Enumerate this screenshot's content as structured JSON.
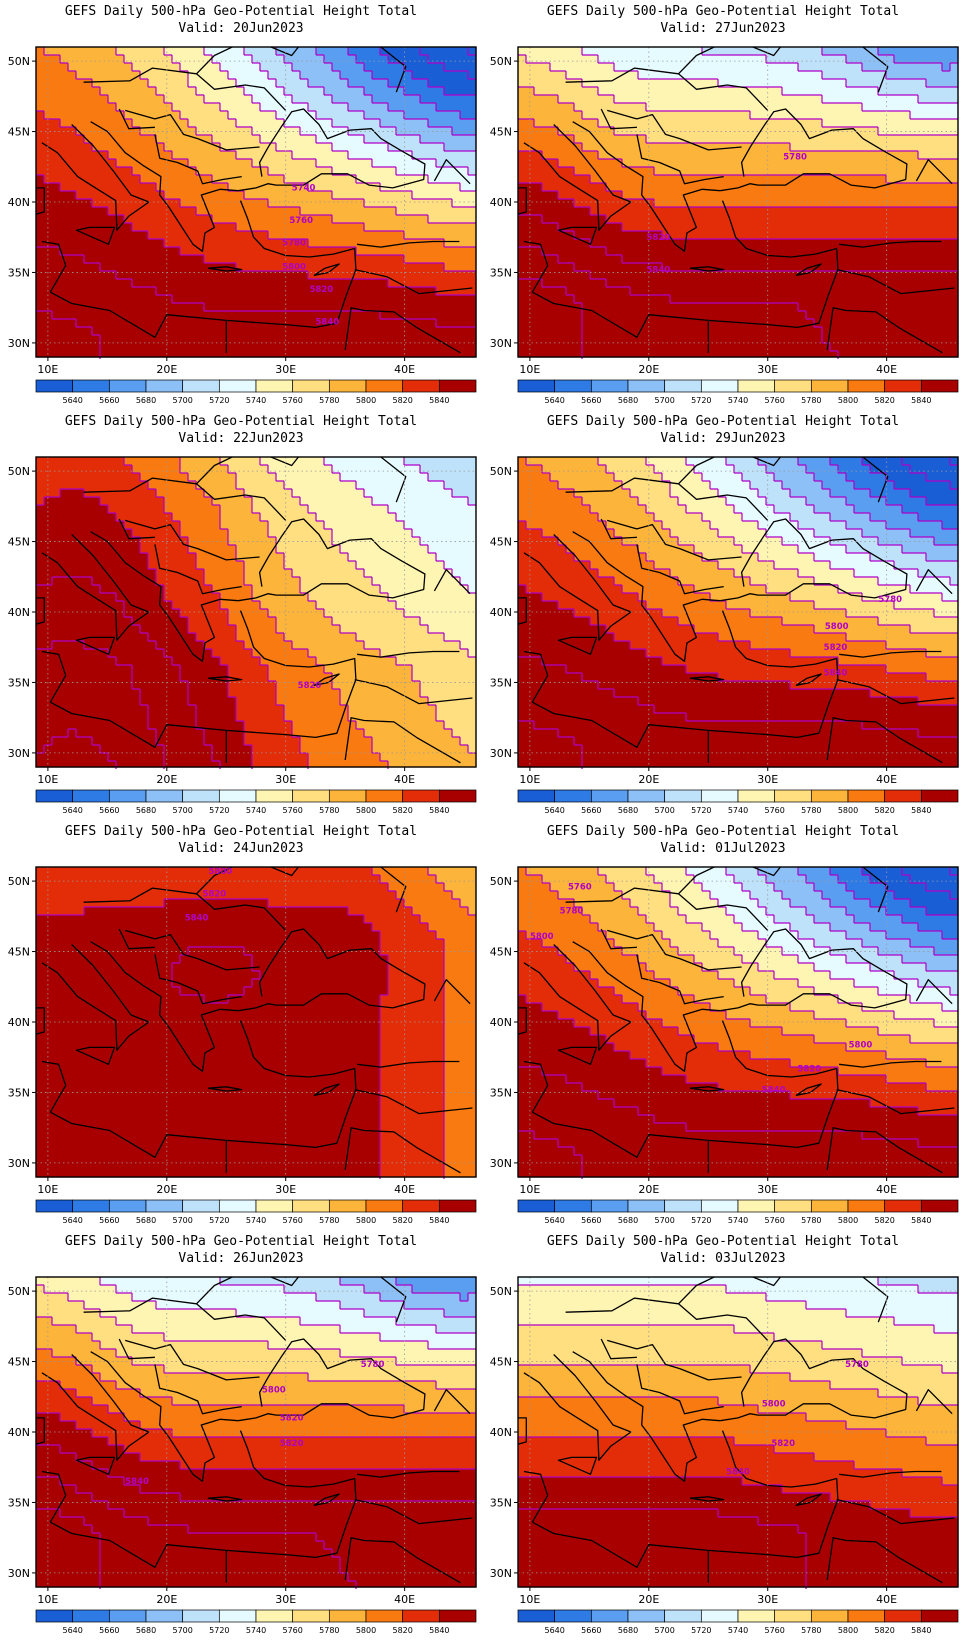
{
  "common_title": "GEFS Daily 500-hPa Geo-Potential Height Total",
  "valid_prefix": "Valid:",
  "lat_labels": [
    "50N",
    "45N",
    "40N",
    "35N",
    "30N"
  ],
  "lon_labels": [
    "10E",
    "20E",
    "30E",
    "40E"
  ],
  "lat_values": [
    50,
    45,
    40,
    35,
    30
  ],
  "lon_values": [
    10,
    20,
    30,
    40
  ],
  "map_extent": {
    "lon": [
      9,
      46
    ],
    "lat": [
      29,
      51
    ]
  },
  "colorbar": {
    "labels": [
      "5640",
      "5660",
      "5680",
      "5700",
      "5720",
      "5740",
      "5760",
      "5780",
      "5800",
      "5820",
      "5840"
    ],
    "colors": [
      "#1a5ed6",
      "#2f7be6",
      "#5a9ef2",
      "#8cc0f7",
      "#bfe2fb",
      "#e6fbff",
      "#fff5b3",
      "#ffdf80",
      "#fdb43a",
      "#f97a10",
      "#e32d08",
      "#a80000"
    ],
    "contour_color": "#b000c8"
  },
  "panels": [
    {
      "valid": "20Jun2023",
      "field_type": "trough-ne",
      "contour_labels": [
        {
          "text": "5740",
          "lon": 31.5,
          "lat": 40.8
        },
        {
          "text": "5760",
          "lon": 31.3,
          "lat": 38.5
        },
        {
          "text": "5780",
          "lon": 30.7,
          "lat": 36.9
        },
        {
          "text": "5800",
          "lon": 30.7,
          "lat": 35.2
        },
        {
          "text": "5820",
          "lon": 33.0,
          "lat": 33.6
        },
        {
          "text": "5840",
          "lon": 33.5,
          "lat": 31.3
        }
      ]
    },
    {
      "valid": "27Jun2023",
      "field_type": "zonal-trough",
      "contour_labels": [
        {
          "text": "5780",
          "lon": 32.3,
          "lat": 43.0
        },
        {
          "text": "5820",
          "lon": 20.8,
          "lat": 37.3
        },
        {
          "text": "5840",
          "lon": 20.8,
          "lat": 35.0
        }
      ]
    },
    {
      "valid": "22Jun2023",
      "field_type": "ridge-west",
      "contour_labels": [
        {
          "text": "5820",
          "lon": 32.0,
          "lat": 34.6
        }
      ]
    },
    {
      "valid": "29Jun2023",
      "field_type": "trough-ne",
      "contour_labels": [
        {
          "text": "5780",
          "lon": 40.3,
          "lat": 40.7
        },
        {
          "text": "5800",
          "lon": 35.8,
          "lat": 38.8
        },
        {
          "text": "5820",
          "lon": 35.7,
          "lat": 37.3
        },
        {
          "text": "5840",
          "lon": 35.7,
          "lat": 35.5
        }
      ]
    },
    {
      "valid": "24Jun2023",
      "field_type": "high-center",
      "contour_labels": [
        {
          "text": "5800",
          "lon": 24.5,
          "lat": 50.5
        },
        {
          "text": "5820",
          "lon": 24.0,
          "lat": 48.9
        },
        {
          "text": "5840",
          "lon": 22.5,
          "lat": 47.2
        }
      ]
    },
    {
      "valid": "01Jul2023",
      "field_type": "trough-ne",
      "contour_labels": [
        {
          "text": "5760",
          "lon": 14.2,
          "lat": 49.4
        },
        {
          "text": "5780",
          "lon": 13.5,
          "lat": 47.7
        },
        {
          "text": "5800",
          "lon": 11.0,
          "lat": 45.9
        },
        {
          "text": "5800",
          "lon": 37.8,
          "lat": 38.2
        },
        {
          "text": "5820",
          "lon": 33.5,
          "lat": 36.5
        },
        {
          "text": "5840",
          "lon": 30.5,
          "lat": 35.0
        }
      ]
    },
    {
      "valid": "26Jun2023",
      "field_type": "zonal-trough",
      "contour_labels": [
        {
          "text": "5780",
          "lon": 37.3,
          "lat": 44.6
        },
        {
          "text": "5800",
          "lon": 29.0,
          "lat": 42.8
        },
        {
          "text": "5820",
          "lon": 30.5,
          "lat": 40.8
        },
        {
          "text": "5820",
          "lon": 30.5,
          "lat": 39.0
        },
        {
          "text": "5840",
          "lon": 17.5,
          "lat": 36.3
        }
      ]
    },
    {
      "valid": "03Jul2023",
      "field_type": "zonal",
      "contour_labels": [
        {
          "text": "5780",
          "lon": 37.5,
          "lat": 44.6
        },
        {
          "text": "5800",
          "lon": 30.5,
          "lat": 41.8
        },
        {
          "text": "5820",
          "lon": 31.3,
          "lat": 39.0
        },
        {
          "text": "5840",
          "lon": 27.5,
          "lat": 37.0
        }
      ]
    }
  ]
}
